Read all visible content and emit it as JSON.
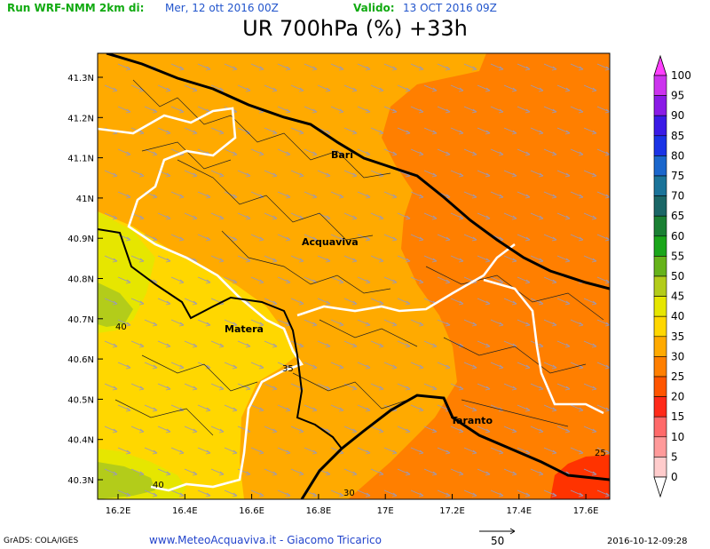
{
  "header": {
    "run_label": "Run WRF-NMM 2km di:",
    "run_date": "Mer, 12 ott 2016 00Z",
    "valid_label": "Valido:",
    "valid_date": "13 OCT 2016 09Z",
    "title": "UR 700hPa (%) +33h"
  },
  "axes": {
    "lat_ticks": [
      "41.3N",
      "41.2N",
      "41.1N",
      "41N",
      "40.9N",
      "40.8N",
      "40.7N",
      "40.6N",
      "40.5N",
      "40.4N",
      "40.3N"
    ],
    "lon_ticks": [
      "16.2E",
      "16.4E",
      "16.6E",
      "16.8E",
      "17E",
      "17.2E",
      "17.4E",
      "17.6E"
    ]
  },
  "cities": [
    {
      "name": "Bari"
    },
    {
      "name": "Acquaviva"
    },
    {
      "name": "Matera"
    },
    {
      "name": "Taranto"
    }
  ],
  "contour_labels": [
    "40",
    "35",
    "30",
    "25",
    "40"
  ],
  "colorbar": {
    "levels": [
      "100",
      "95",
      "90",
      "85",
      "80",
      "75",
      "70",
      "65",
      "60",
      "55",
      "50",
      "45",
      "40",
      "35",
      "30",
      "25",
      "20",
      "15",
      "10",
      "5",
      "0"
    ],
    "colors": [
      "#ff3fff",
      "#cc33ee",
      "#8a1ae6",
      "#3a1ae6",
      "#1a33e6",
      "#1a66cc",
      "#1a7399",
      "#1a6666",
      "#1a8033",
      "#1aa61a",
      "#66b31a",
      "#b3cc1a",
      "#e6e600",
      "#ffd700",
      "#ffaa00",
      "#ff7f00",
      "#ff5500",
      "#ff2a1a",
      "#ff6a6a",
      "#ff9a9a",
      "#ffcccc"
    ]
  },
  "map_colors": {
    "orange_dark": "#ff7f00",
    "orange": "#ffaa00",
    "yellow": "#ffd700",
    "yellow_light": "#e6e600",
    "red": "#ff3300",
    "lime": "#b3cc1a"
  },
  "footer": {
    "grads": "GrADS: COLA/IGES",
    "credit": "www.MeteoAcquaviva.it  -  Giacomo Tricarico",
    "vector_ref": "50",
    "timestamp": "2016-10-12-09:28"
  }
}
